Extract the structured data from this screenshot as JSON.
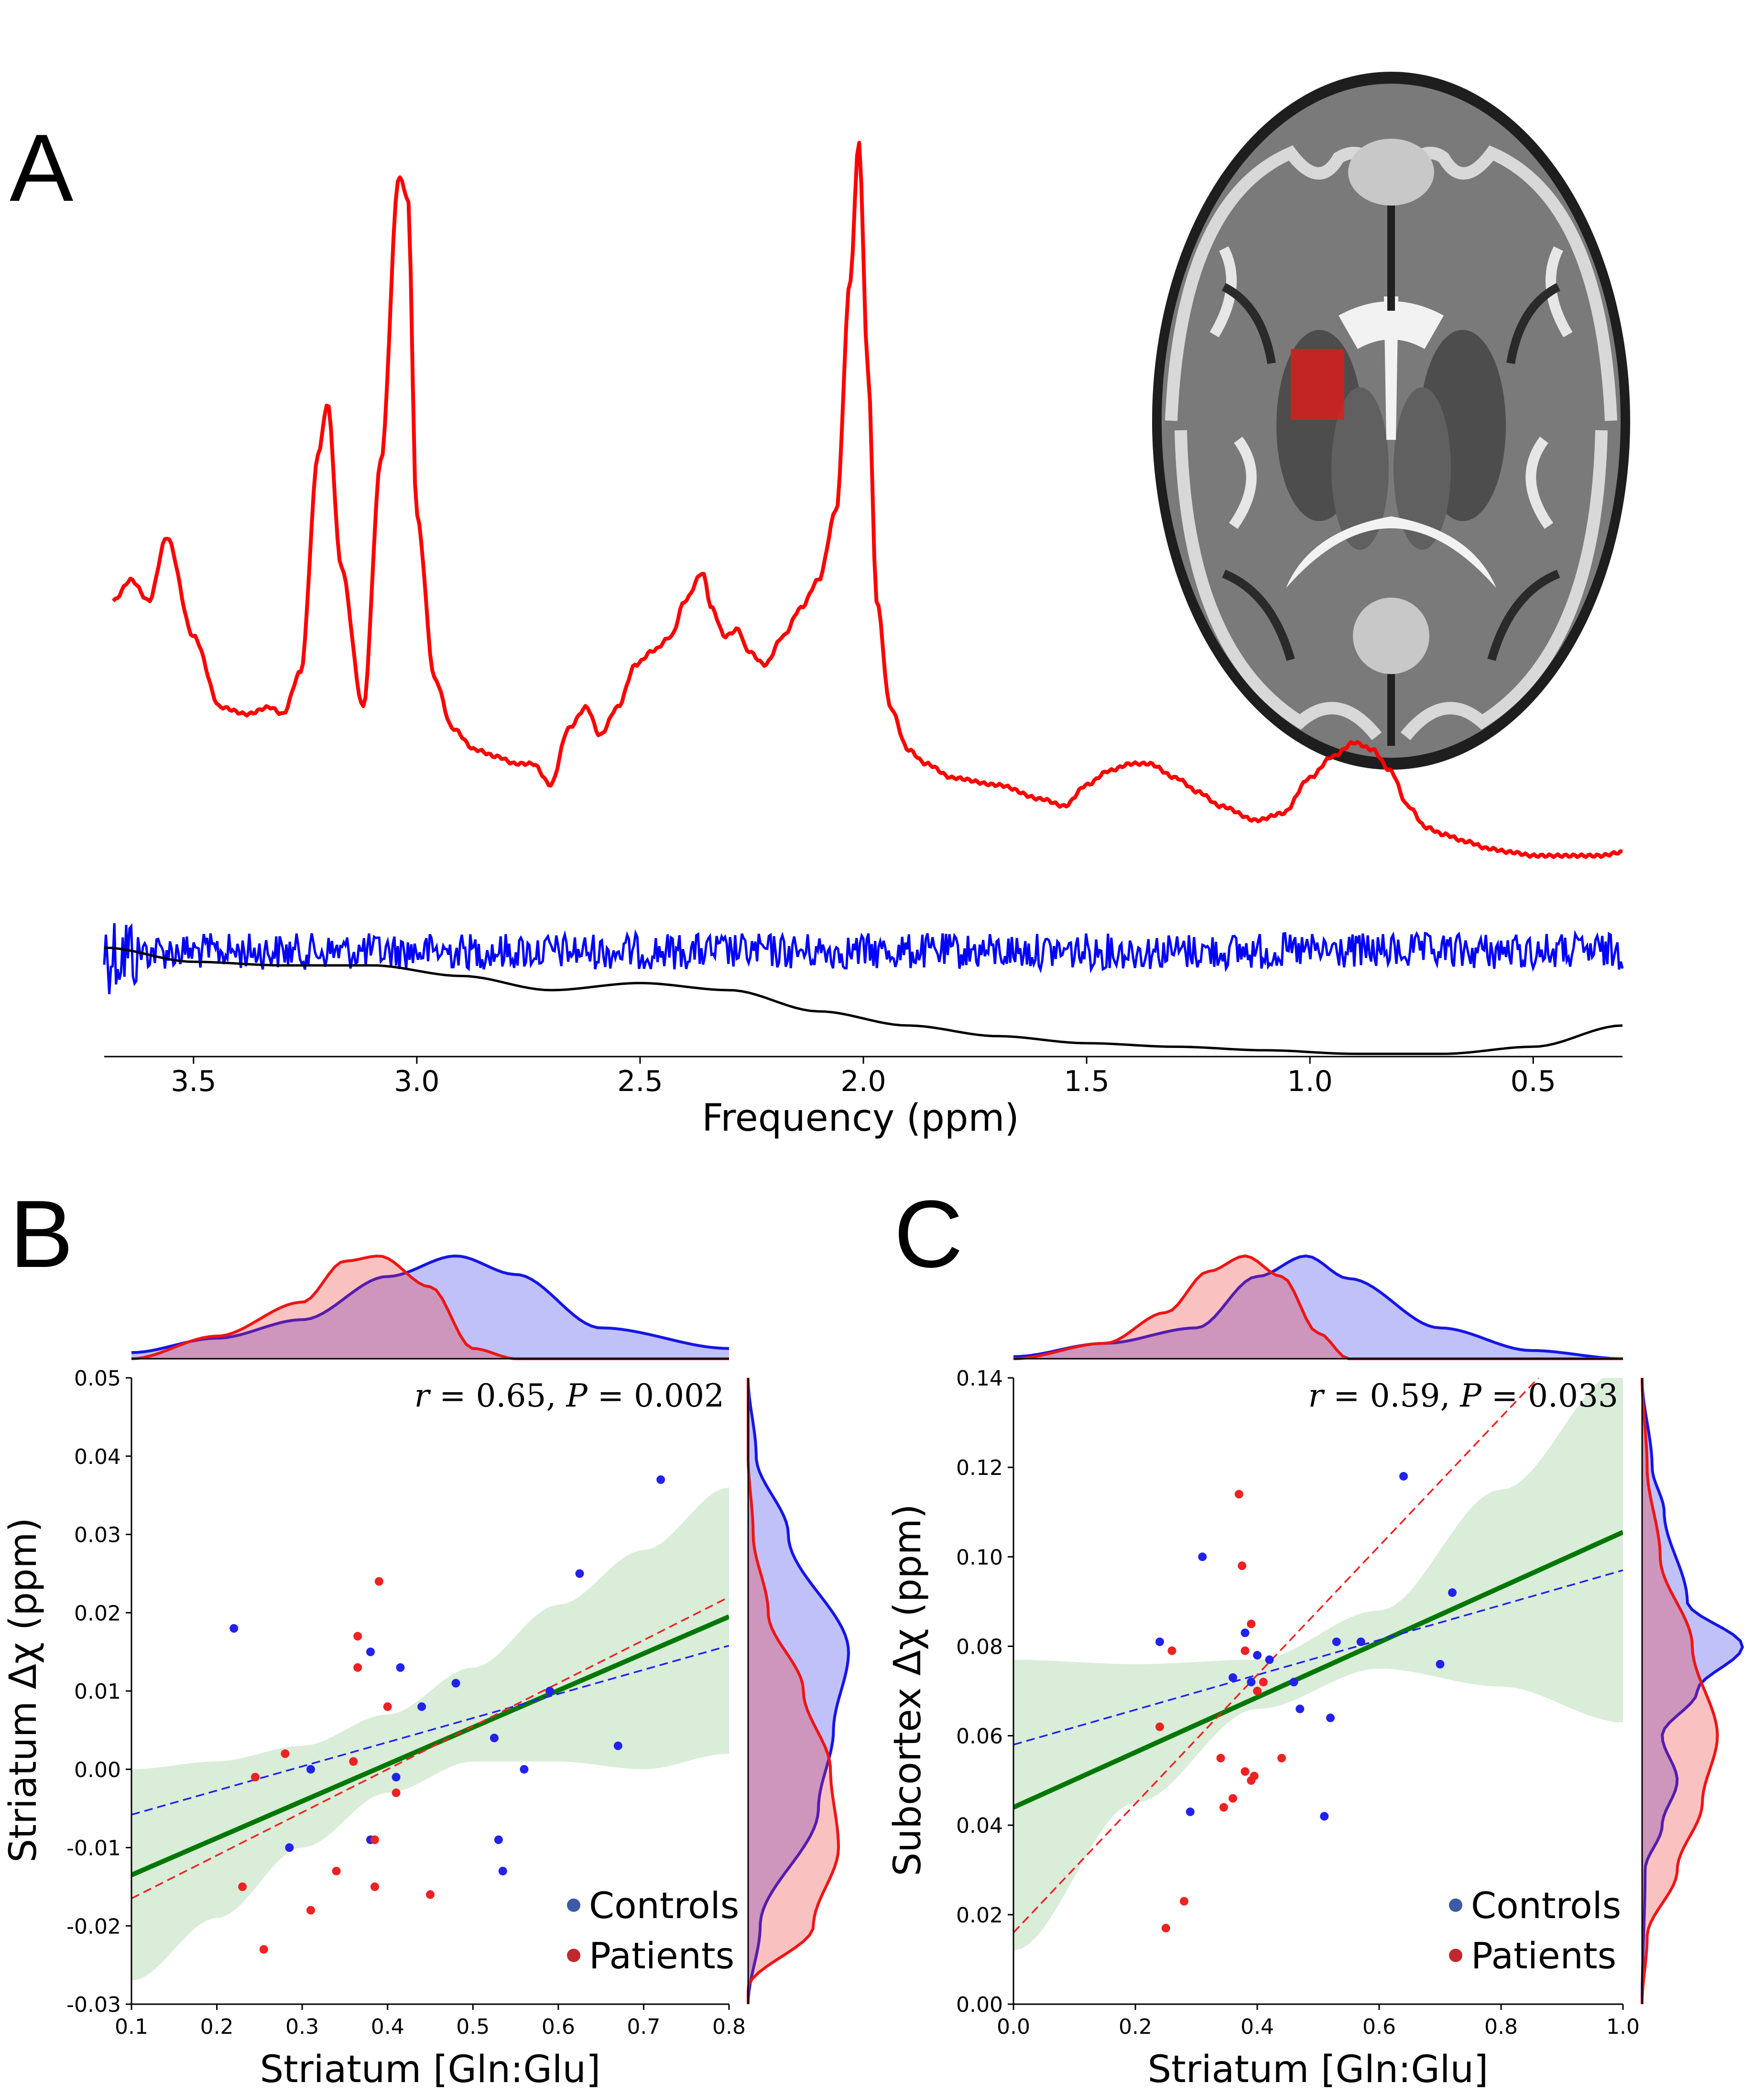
{
  "panels": {
    "A": {
      "letter": "A",
      "xlabel": "Frequency (ppm)",
      "xticks": [
        "3.5",
        "3.0",
        "2.5",
        "2.0",
        "1.5",
        "1.0",
        "0.5"
      ],
      "xlim": [
        3.7,
        0.3
      ],
      "colors": {
        "spectrum": "#ff0000",
        "baseline": "#000000",
        "residual": "#0000ff",
        "roi": "#d42020"
      }
    },
    "B": {
      "letter": "B",
      "xlabel": "Striatum [Gln:Glu]",
      "ylabel": "Striatum Δχ (ppm)",
      "stat_r": "r",
      "stat_r_val": " = 0.65, ",
      "stat_p": "P",
      "stat_p_val": " = 0.002",
      "xticks": [
        "0.1",
        "0.2",
        "0.3",
        "0.4",
        "0.5",
        "0.6",
        "0.7",
        "0.8"
      ],
      "yticks": [
        "0.05",
        "0.04",
        "0.03",
        "0.02",
        "0.01",
        "0.00",
        "-0.01",
        "-0.02",
        "-0.03"
      ],
      "legend": [
        "Controls",
        "Patients"
      ]
    },
    "C": {
      "letter": "C",
      "xlabel": "Striatum [Gln:Glu]",
      "ylabel": "Subcortex Δχ (ppm)",
      "stat_r": "r",
      "stat_r_val": " = 0.59, ",
      "stat_p": "P",
      "stat_p_val": " = 0.033",
      "xticks": [
        "0.0",
        "0.2",
        "0.4",
        "0.6",
        "0.8",
        "1.0"
      ],
      "yticks": [
        "0.14",
        "0.12",
        "0.10",
        "0.08",
        "0.06",
        "0.04",
        "0.02",
        "0.00"
      ],
      "legend": [
        "Controls",
        "Patients"
      ]
    }
  },
  "chart_data": [
    {
      "type": "line",
      "title": "",
      "xlabel": "Frequency (ppm)",
      "xlim": [
        3.7,
        0.3
      ],
      "series": [
        {
          "name": "spectrum",
          "color": "#ff0000",
          "x": [
            3.68,
            3.64,
            3.6,
            3.56,
            3.5,
            3.44,
            3.38,
            3.33,
            3.3,
            3.26,
            3.22,
            3.2,
            3.17,
            3.12,
            3.08,
            3.04,
            3.02,
            3.0,
            2.96,
            2.92,
            2.87,
            2.82,
            2.78,
            2.74,
            2.7,
            2.66,
            2.62,
            2.59,
            2.55,
            2.51,
            2.47,
            2.43,
            2.4,
            2.36,
            2.34,
            2.31,
            2.28,
            2.26,
            2.22,
            2.18,
            2.14,
            2.1,
            2.06,
            2.03,
            2.01,
            1.99,
            1.97,
            1.94,
            1.9,
            1.86,
            1.8,
            1.7,
            1.6,
            1.55,
            1.5,
            1.45,
            1.4,
            1.36,
            1.3,
            1.25,
            1.2,
            1.12,
            1.06,
            1.0,
            0.95,
            0.9,
            0.86,
            0.82,
            0.78,
            0.74,
            0.7,
            0.65,
            0.6,
            0.55,
            0.5,
            0.45,
            0.4,
            0.35,
            0.3
          ],
          "y": [
            0.35,
            0.38,
            0.35,
            0.44,
            0.3,
            0.2,
            0.19,
            0.2,
            0.19,
            0.25,
            0.56,
            0.63,
            0.4,
            0.2,
            0.55,
            0.95,
            0.92,
            0.47,
            0.24,
            0.17,
            0.14,
            0.13,
            0.12,
            0.12,
            0.09,
            0.17,
            0.2,
            0.16,
            0.2,
            0.26,
            0.28,
            0.3,
            0.35,
            0.39,
            0.34,
            0.3,
            0.31,
            0.28,
            0.26,
            0.3,
            0.34,
            0.38,
            0.48,
            0.8,
            1.0,
            0.68,
            0.35,
            0.2,
            0.14,
            0.12,
            0.1,
            0.09,
            0.07,
            0.06,
            0.09,
            0.11,
            0.12,
            0.12,
            0.1,
            0.08,
            0.06,
            0.04,
            0.05,
            0.1,
            0.13,
            0.15,
            0.14,
            0.11,
            0.06,
            0.03,
            0.02,
            0.01,
            0.0,
            -0.005,
            -0.01,
            -0.01,
            -0.01,
            -0.01,
            -0.005
          ]
        },
        {
          "name": "baseline",
          "color": "#000000",
          "x": [
            3.7,
            3.5,
            3.3,
            3.1,
            2.9,
            2.7,
            2.5,
            2.3,
            2.1,
            1.9,
            1.7,
            1.5,
            1.3,
            1.1,
            0.9,
            0.7,
            0.5,
            0.3
          ],
          "y": [
            -0.14,
            -0.16,
            -0.165,
            -0.165,
            -0.18,
            -0.2,
            -0.19,
            -0.2,
            -0.23,
            -0.25,
            -0.265,
            -0.275,
            -0.28,
            -0.285,
            -0.29,
            -0.29,
            -0.28,
            -0.25
          ]
        }
      ]
    },
    {
      "type": "scatter",
      "title": "",
      "xlabel": "Striatum [Gln:Glu]",
      "ylabel": "Striatum Δχ (ppm)",
      "xlim": [
        0.1,
        0.8
      ],
      "ylim": [
        -0.03,
        0.05
      ],
      "annotation": "r = 0.65, P = 0.002",
      "series": [
        {
          "name": "Controls",
          "color": "#2222ee",
          "points": [
            [
              0.22,
              0.018
            ],
            [
              0.285,
              -0.01
            ],
            [
              0.31,
              0.0
            ],
            [
              0.38,
              0.015
            ],
            [
              0.38,
              -0.009
            ],
            [
              0.41,
              -0.001
            ],
            [
              0.415,
              0.013
            ],
            [
              0.44,
              0.008
            ],
            [
              0.48,
              0.011
            ],
            [
              0.525,
              0.004
            ],
            [
              0.53,
              -0.009
            ],
            [
              0.535,
              -0.013
            ],
            [
              0.56,
              0.0
            ],
            [
              0.59,
              0.01
            ],
            [
              0.625,
              0.025
            ],
            [
              0.67,
              0.003
            ],
            [
              0.72,
              0.037
            ]
          ]
        },
        {
          "name": "Patients",
          "color": "#ee2222",
          "points": [
            [
              0.23,
              -0.015
            ],
            [
              0.245,
              -0.001
            ],
            [
              0.255,
              -0.023
            ],
            [
              0.28,
              0.002
            ],
            [
              0.31,
              -0.018
            ],
            [
              0.34,
              -0.013
            ],
            [
              0.36,
              0.001
            ],
            [
              0.365,
              0.017
            ],
            [
              0.365,
              0.013
            ],
            [
              0.385,
              -0.009
            ],
            [
              0.385,
              -0.015
            ],
            [
              0.39,
              0.024
            ],
            [
              0.4,
              0.008
            ],
            [
              0.41,
              -0.003
            ],
            [
              0.45,
              -0.016
            ]
          ]
        }
      ],
      "fits": [
        {
          "name": "overall",
          "color": "#007700",
          "x": [
            0.1,
            0.8
          ],
          "y": [
            -0.0135,
            0.0195
          ]
        },
        {
          "name": "Controls",
          "color": "#2222ee",
          "x": [
            0.1,
            0.8
          ],
          "y": [
            -0.0058,
            0.0158
          ]
        },
        {
          "name": "Patients",
          "color": "#ee2222",
          "x": [
            0.1,
            0.8
          ],
          "y": [
            -0.0165,
            0.022
          ]
        }
      ],
      "ci_band": {
        "x": [
          0.1,
          0.2,
          0.3,
          0.4,
          0.5,
          0.6,
          0.7,
          0.8
        ],
        "lower": [
          -0.027,
          -0.019,
          -0.01,
          -0.003,
          0.001,
          0.001,
          0.0,
          0.002
        ],
        "upper": [
          0.0,
          0.001,
          0.003,
          0.007,
          0.013,
          0.021,
          0.028,
          0.036
        ]
      },
      "marginal_top": {
        "Controls": {
          "x": [
            0.1,
            0.2,
            0.3,
            0.4,
            0.48,
            0.55,
            0.65,
            0.8
          ],
          "density": [
            0.06,
            0.2,
            0.38,
            0.8,
            1.0,
            0.82,
            0.3,
            0.1
          ]
        },
        "Patients": {
          "x": [
            0.1,
            0.2,
            0.3,
            0.35,
            0.39,
            0.45,
            0.5,
            0.55,
            0.8
          ],
          "density": [
            0.0,
            0.22,
            0.55,
            0.95,
            1.0,
            0.7,
            0.1,
            0.0,
            0.0
          ]
        }
      },
      "marginal_right": {
        "Controls": {
          "y": [
            0.05,
            0.04,
            0.03,
            0.015,
            0.005,
            -0.005,
            -0.02,
            -0.03
          ],
          "density": [
            0.0,
            0.08,
            0.4,
            1.0,
            0.85,
            0.7,
            0.12,
            0.0
          ]
        },
        "Patients": {
          "y": [
            0.04,
            0.03,
            0.02,
            0.01,
            0.0,
            -0.01,
            -0.02,
            -0.028
          ],
          "density": [
            0.0,
            0.05,
            0.2,
            0.55,
            0.82,
            0.9,
            0.65,
            0.0
          ]
        }
      }
    },
    {
      "type": "scatter",
      "title": "",
      "xlabel": "Striatum [Gln:Glu]",
      "ylabel": "Subcortex Δχ (ppm)",
      "xlim": [
        0.0,
        1.0
      ],
      "ylim": [
        0.0,
        0.14
      ],
      "annotation": "r = 0.59, P = 0.033",
      "series": [
        {
          "name": "Controls",
          "color": "#2222ee",
          "points": [
            [
              0.24,
              0.081
            ],
            [
              0.29,
              0.043
            ],
            [
              0.31,
              0.1
            ],
            [
              0.36,
              0.073
            ],
            [
              0.38,
              0.083
            ],
            [
              0.39,
              0.072
            ],
            [
              0.4,
              0.078
            ],
            [
              0.42,
              0.077
            ],
            [
              0.46,
              0.072
            ],
            [
              0.47,
              0.066
            ],
            [
              0.51,
              0.042
            ],
            [
              0.52,
              0.064
            ],
            [
              0.53,
              0.081
            ],
            [
              0.57,
              0.081
            ],
            [
              0.64,
              0.118
            ],
            [
              0.7,
              0.076
            ],
            [
              0.72,
              0.092
            ]
          ]
        },
        {
          "name": "Patients",
          "color": "#ee2222",
          "points": [
            [
              0.24,
              0.062
            ],
            [
              0.25,
              0.017
            ],
            [
              0.26,
              0.079
            ],
            [
              0.28,
              0.023
            ],
            [
              0.34,
              0.055
            ],
            [
              0.345,
              0.044
            ],
            [
              0.36,
              0.046
            ],
            [
              0.37,
              0.114
            ],
            [
              0.375,
              0.098
            ],
            [
              0.38,
              0.052
            ],
            [
              0.38,
              0.079
            ],
            [
              0.39,
              0.05
            ],
            [
              0.39,
              0.085
            ],
            [
              0.395,
              0.051
            ],
            [
              0.41,
              0.072
            ],
            [
              0.44,
              0.055
            ],
            [
              0.4,
              0.07
            ]
          ]
        }
      ],
      "fits": [
        {
          "name": "overall",
          "color": "#007700",
          "x": [
            0.0,
            1.0
          ],
          "y": [
            0.044,
            0.1055
          ]
        },
        {
          "name": "Controls",
          "color": "#2222ee",
          "x": [
            0.0,
            1.0
          ],
          "y": [
            0.058,
            0.097
          ]
        },
        {
          "name": "Patients",
          "color": "#ee2222",
          "x": [
            0.0,
            1.0
          ],
          "y": [
            0.016,
            0.16
          ]
        }
      ],
      "ci_band": {
        "x": [
          0.0,
          0.2,
          0.4,
          0.6,
          0.8,
          1.0
        ],
        "lower": [
          0.012,
          0.045,
          0.066,
          0.075,
          0.071,
          0.063
        ],
        "upper": [
          0.077,
          0.076,
          0.077,
          0.088,
          0.115,
          0.142
        ]
      },
      "marginal_top": {
        "Controls": {
          "x": [
            0.0,
            0.15,
            0.3,
            0.4,
            0.48,
            0.55,
            0.7,
            0.85,
            1.0
          ],
          "density": [
            0.02,
            0.15,
            0.3,
            0.8,
            1.0,
            0.78,
            0.3,
            0.08,
            0.0
          ]
        },
        "Patients": {
          "x": [
            0.0,
            0.15,
            0.25,
            0.32,
            0.38,
            0.44,
            0.5,
            0.55,
            1.0
          ],
          "density": [
            0.0,
            0.15,
            0.45,
            0.85,
            1.0,
            0.8,
            0.25,
            0.0,
            0.0
          ]
        }
      },
      "marginal_right": {
        "Controls": {
          "y": [
            0.14,
            0.12,
            0.11,
            0.09,
            0.08,
            0.07,
            0.06,
            0.05,
            0.04,
            0.03,
            0.0
          ],
          "density": [
            0.0,
            0.1,
            0.22,
            0.45,
            1.0,
            0.55,
            0.2,
            0.35,
            0.2,
            0.03,
            0.0
          ]
        },
        "Patients": {
          "y": [
            0.14,
            0.12,
            0.1,
            0.08,
            0.06,
            0.045,
            0.03,
            0.015,
            0.0
          ],
          "density": [
            0.0,
            0.05,
            0.18,
            0.5,
            0.75,
            0.6,
            0.35,
            0.05,
            0.0
          ]
        }
      }
    }
  ]
}
